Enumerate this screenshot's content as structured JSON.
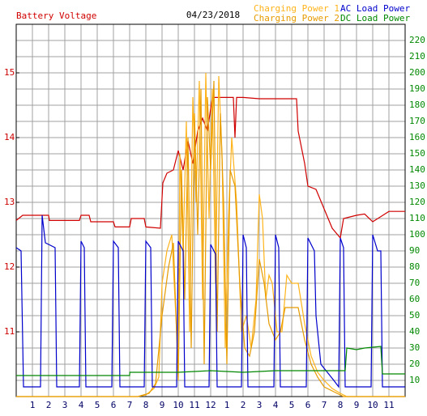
{
  "chart_data": {
    "type": "line",
    "title": "04/23/2018",
    "xlim": [
      0,
      24
    ],
    "xticks": [
      1,
      2,
      3,
      4,
      5,
      6,
      7,
      8,
      9,
      10,
      11,
      12,
      {
        "value": 13,
        "label": "1"
      },
      {
        "value": 14,
        "label": "2"
      },
      {
        "value": 15,
        "label": "3"
      },
      {
        "value": 16,
        "label": "4"
      },
      {
        "value": 17,
        "label": "5"
      },
      {
        "value": 18,
        "label": "6"
      },
      {
        "value": 19,
        "label": "7"
      },
      {
        "value": 20,
        "label": "8"
      },
      {
        "value": 21,
        "label": "9"
      },
      {
        "value": 22,
        "label": "10"
      },
      {
        "value": 23,
        "label": "11"
      }
    ],
    "ylim": [
      10,
      15.75
    ],
    "yticks": [
      11,
      12,
      13,
      14,
      15
    ],
    "y2lim": [
      0,
      230
    ],
    "y2ticks": [
      10,
      20,
      30,
      40,
      50,
      60,
      70,
      80,
      90,
      100,
      110,
      120,
      130,
      140,
      150,
      160,
      170,
      180,
      190,
      200,
      210,
      220
    ],
    "grid": true,
    "series": [
      {
        "name": "Battery Voltage",
        "color": "#d00000",
        "x": [
          0,
          0.4,
          2,
          2.05,
          3.9,
          4,
          4.5,
          4.6,
          6,
          6.1,
          7,
          7.1,
          7.9,
          8,
          8.9,
          9.05,
          9.3,
          9.7,
          10,
          10.3,
          10.6,
          10.9,
          11.2,
          11.5,
          11.8,
          12.1,
          13,
          13.4,
          13.5,
          13.6,
          14,
          15,
          16,
          17.3,
          17.4,
          17.8,
          18,
          18.5,
          19,
          19.5,
          20,
          20.2,
          21,
          21.5,
          22,
          22.5,
          23,
          24
        ],
        "values": [
          12.72,
          12.8,
          12.8,
          12.72,
          12.72,
          12.8,
          12.8,
          12.7,
          12.7,
          12.62,
          12.62,
          12.75,
          12.75,
          12.62,
          12.6,
          13.3,
          13.45,
          13.5,
          13.8,
          13.5,
          13.95,
          13.6,
          14.1,
          14.3,
          14.1,
          14.62,
          14.62,
          14.62,
          14.0,
          14.62,
          14.62,
          14.6,
          14.6,
          14.6,
          14.1,
          13.6,
          13.25,
          13.2,
          12.9,
          12.6,
          12.45,
          12.75,
          12.8,
          12.82,
          12.7,
          12.78,
          12.86,
          12.86
        ]
      },
      {
        "name": "Charging Power 1",
        "color": "#ffb31a",
        "axis": "y2",
        "x": [
          0,
          7.5,
          8,
          8.5,
          8.8,
          9,
          9.3,
          9.6,
          9.8,
          10,
          10.1,
          10.3,
          10.5,
          10.7,
          10.9,
          11.1,
          11.3,
          11.5,
          11.7,
          11.9,
          12.1,
          12.3,
          12.5,
          12.7,
          12.9,
          13.1,
          13.3,
          13.6,
          13.9,
          14.2,
          14.5,
          14.8,
          15,
          15.2,
          15.4,
          15.6,
          15.8,
          16.1,
          16.4,
          16.7,
          17,
          17.4,
          17.8,
          18.2,
          18.6,
          19,
          19.5,
          20,
          20.4,
          24
        ],
        "values": [
          0,
          0,
          1,
          5,
          12,
          70,
          90,
          100,
          60,
          20,
          150,
          90,
          170,
          40,
          185,
          120,
          195,
          60,
          200,
          110,
          190,
          70,
          198,
          150,
          30,
          110,
          160,
          120,
          40,
          50,
          30,
          60,
          125,
          110,
          60,
          75,
          70,
          40,
          40,
          75,
          70,
          70,
          45,
          25,
          15,
          10,
          5,
          2,
          0,
          0
        ]
      },
      {
        "name": "Charging Power 2",
        "color": "#e69b00",
        "axis": "y2",
        "x": [
          0,
          7.5,
          8.2,
          8.6,
          9,
          9.4,
          9.7,
          10,
          10.2,
          10.4,
          10.6,
          10.8,
          11,
          11.2,
          11.4,
          11.6,
          11.8,
          12,
          12.2,
          12.4,
          12.6,
          12.8,
          13,
          13.2,
          13.5,
          13.8,
          14.1,
          14.4,
          14.7,
          15,
          15.3,
          15.6,
          16,
          16.3,
          16.6,
          17,
          17.4,
          17.8,
          18.2,
          18.6,
          19,
          19.6,
          20.2,
          24
        ],
        "values": [
          0,
          0,
          2,
          8,
          50,
          80,
          95,
          10,
          140,
          60,
          160,
          30,
          175,
          100,
          190,
          20,
          185,
          140,
          195,
          40,
          175,
          120,
          20,
          140,
          130,
          70,
          30,
          25,
          40,
          85,
          70,
          45,
          35,
          40,
          55,
          55,
          55,
          35,
          20,
          12,
          6,
          3,
          0,
          0
        ]
      },
      {
        "name": "AC Load Power",
        "color": "#0000cc",
        "axis": "y2",
        "x": [
          0,
          0.3,
          0.45,
          1.5,
          1.6,
          1.8,
          2.4,
          2.5,
          3.9,
          4,
          4.2,
          4.3,
          5.9,
          6,
          6.3,
          6.4,
          7.9,
          8,
          8.3,
          8.4,
          9.9,
          10,
          10.3,
          10.4,
          11.9,
          12,
          12.3,
          12.4,
          13.9,
          14,
          14.2,
          14.3,
          15.9,
          16,
          16.2,
          16.3,
          17.9,
          18,
          18.4,
          18.5,
          18.8,
          19.2,
          19.6,
          19.9,
          20,
          20.2,
          20.3,
          21.9,
          22,
          22.3,
          22.5,
          22.6,
          24
        ],
        "values": [
          92,
          90,
          6,
          6,
          112,
          95,
          92,
          6,
          6,
          96,
          92,
          6,
          6,
          96,
          92,
          6,
          6,
          96,
          92,
          6,
          6,
          96,
          90,
          6,
          6,
          94,
          88,
          6,
          6,
          100,
          92,
          6,
          6,
          100,
          92,
          6,
          6,
          98,
          90,
          50,
          20,
          15,
          10,
          6,
          98,
          92,
          6,
          6,
          100,
          90,
          90,
          6,
          6
        ]
      },
      {
        "name": "DC Load Power",
        "color": "#008800",
        "axis": "y2",
        "x": [
          0,
          7,
          7.01,
          10,
          12,
          14,
          16,
          18,
          20.3,
          20.4,
          21,
          21.5,
          22.5,
          22.6,
          24
        ],
        "values": [
          13,
          13,
          15,
          15,
          16,
          15,
          16,
          16,
          16,
          30,
          29,
          30,
          31,
          14,
          14
        ]
      }
    ]
  }
}
